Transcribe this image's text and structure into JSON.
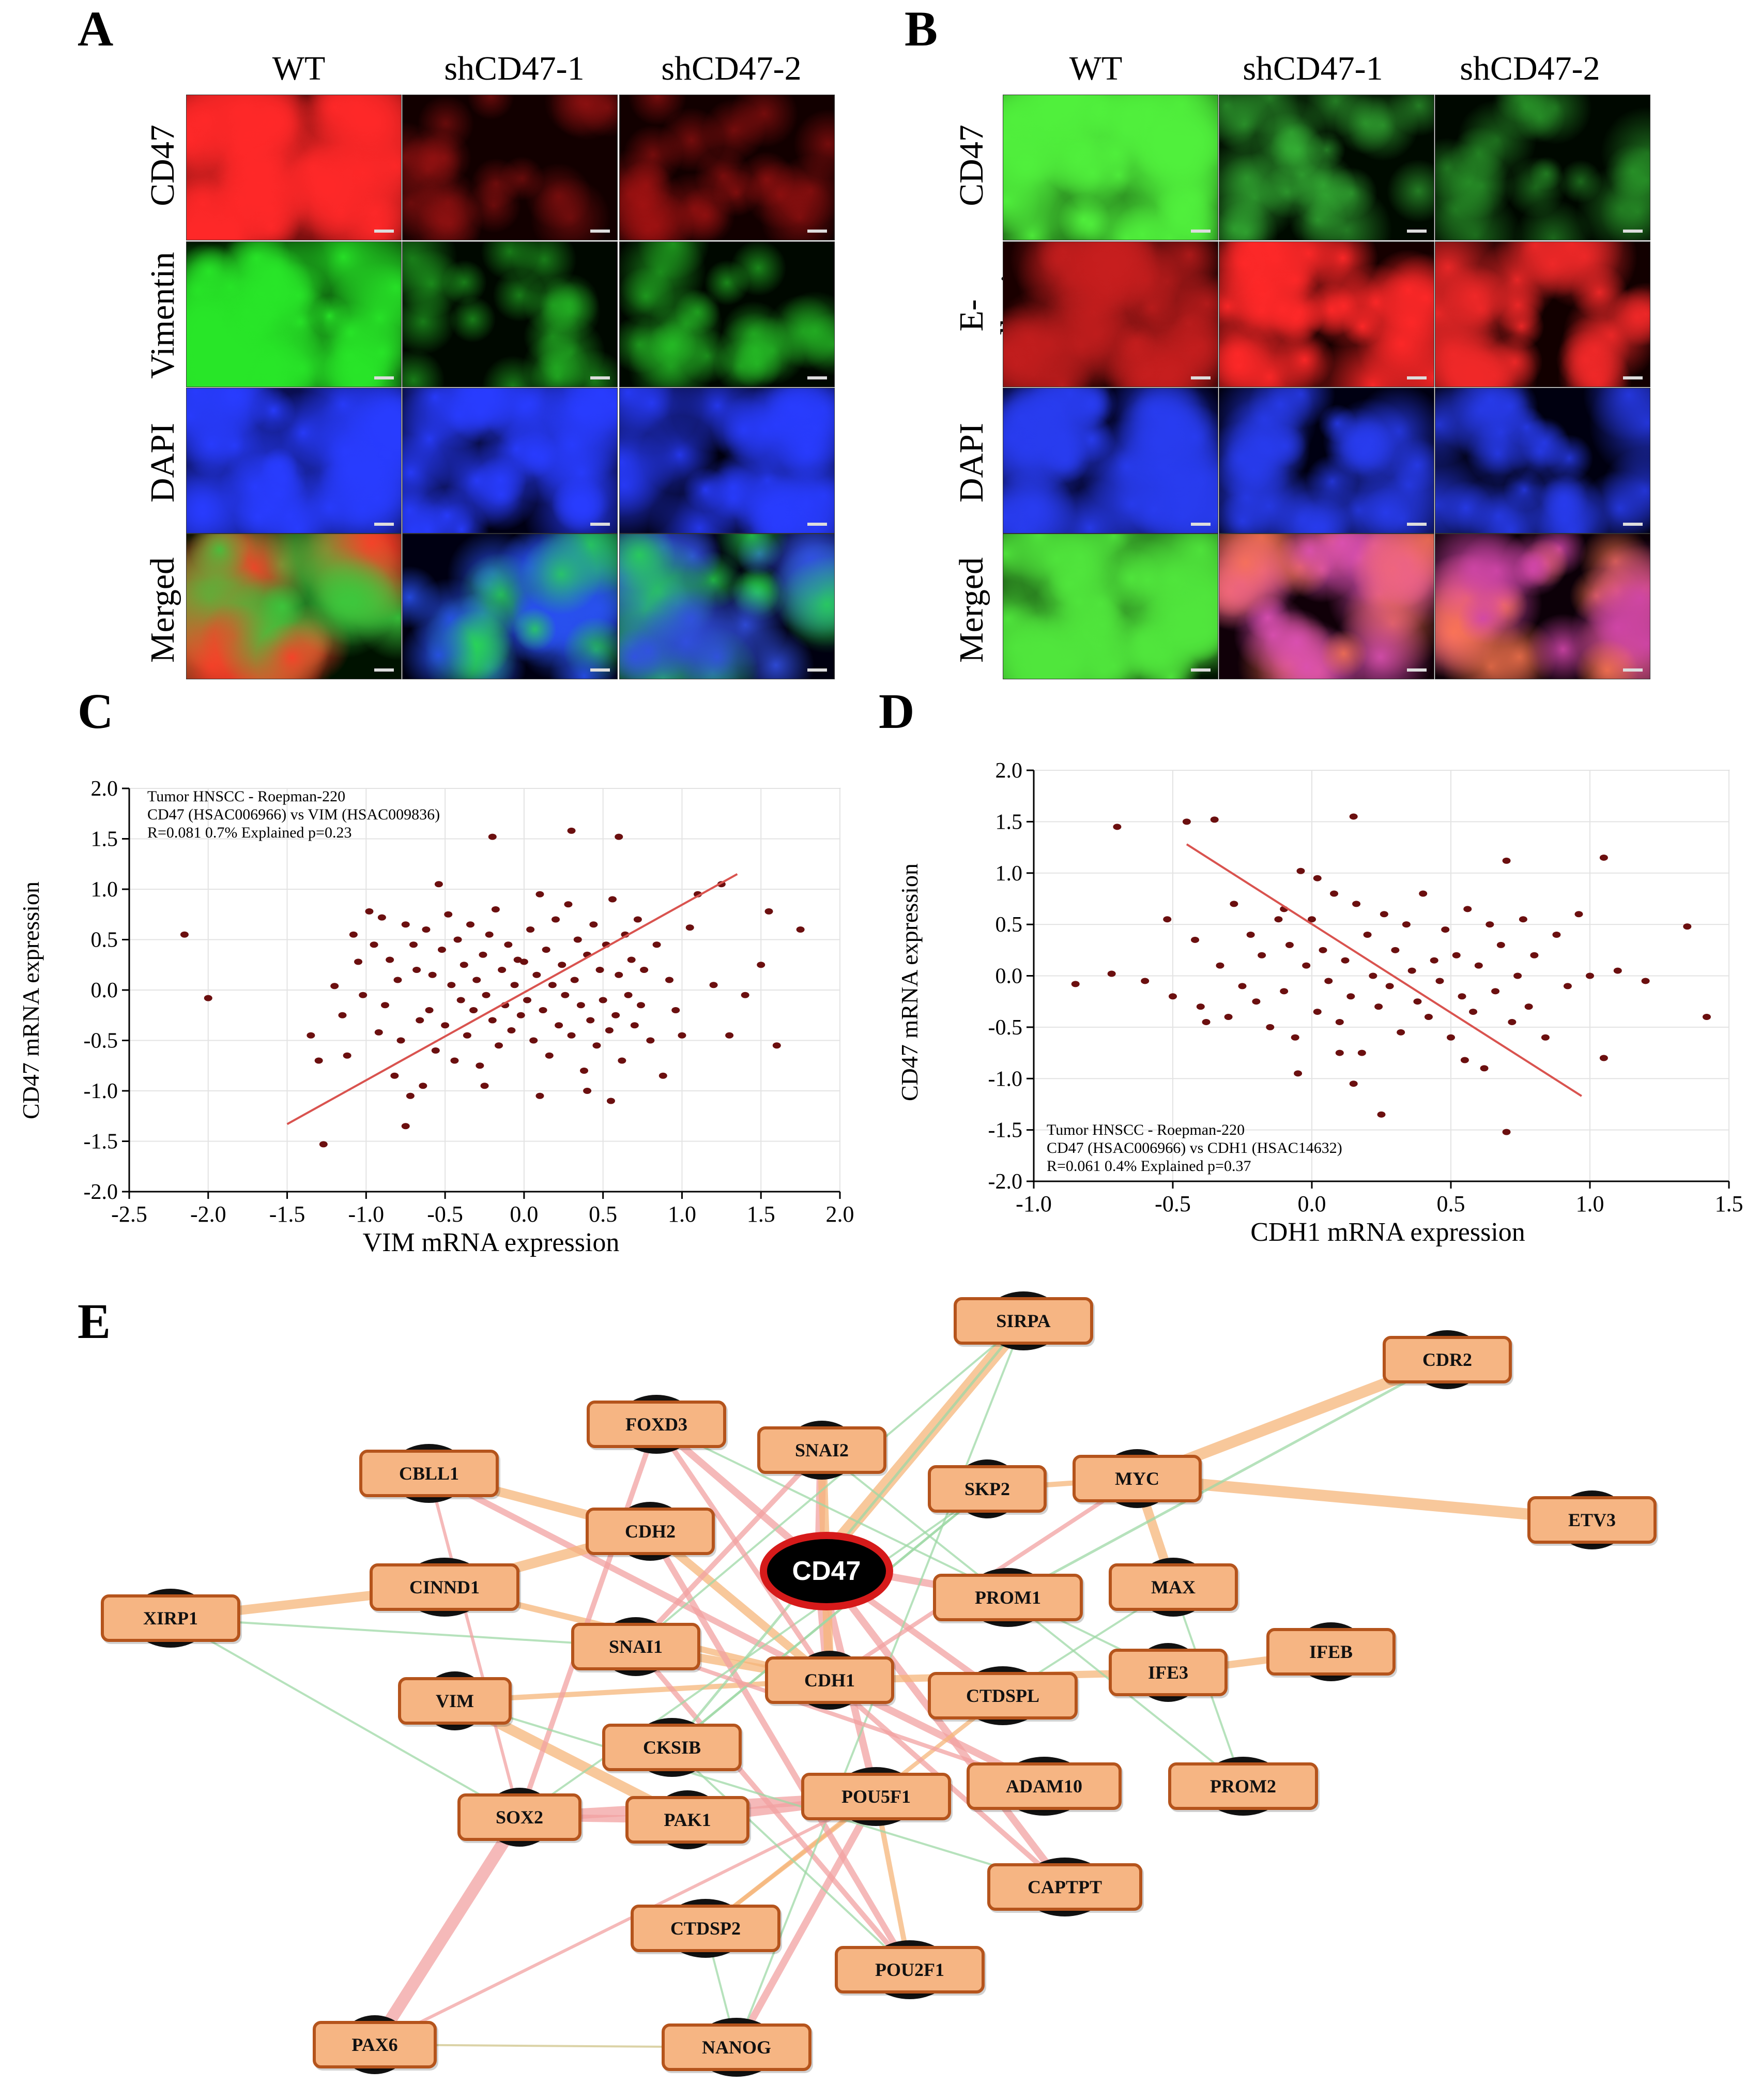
{
  "panels": {
    "A": {
      "letter": "A",
      "columns": [
        "WT",
        "shCD47-1",
        "shCD47-2"
      ],
      "rows": [
        "CD47",
        "Vimentin",
        "DAPI",
        "Merged"
      ]
    },
    "B": {
      "letter": "B",
      "columns": [
        "WT",
        "shCD47-1",
        "shCD47-2"
      ],
      "rows": [
        "CD47",
        "E-cadherin",
        "DAPI",
        "Merged"
      ]
    },
    "C": {
      "letter": "C"
    },
    "D": {
      "letter": "D"
    },
    "E": {
      "letter": "E"
    }
  },
  "chart_data": [
    {
      "id": "C",
      "type": "scatter",
      "xlabel": "VIM mRNA expression",
      "ylabel": "CD47 mRNA expression",
      "annotation": [
        "Tumor HNSCC - Roepman-220",
        "CD47 (HSAC006966) vs VIM (HSAC009836)",
        "R=0.081 0.7% Explained p=0.23"
      ],
      "xlim": [
        -2.5,
        2.0
      ],
      "ylim": [
        -2.0,
        2.0
      ],
      "xticks": [
        "-2.5",
        "-2.0",
        "-1.5",
        "-1.0",
        "-0.5",
        "0.0",
        "0.5",
        "1.0",
        "1.5",
        "2.0"
      ],
      "yticks": [
        "2.0",
        "1.5",
        "1.0",
        "0.5",
        "0.0",
        "-0.5",
        "-1.0",
        "-1.5",
        "-2.0"
      ],
      "point_color": "#6b0f0f",
      "fit_line_color": "#d9534f",
      "fit_line": [
        [
          -1.5,
          -1.33
        ],
        [
          1.35,
          1.15
        ]
      ],
      "points": [
        [
          -2.15,
          0.55
        ],
        [
          -2.0,
          -0.08
        ],
        [
          -1.27,
          -1.53
        ],
        [
          -1.2,
          0.04
        ],
        [
          -1.15,
          -0.25
        ],
        [
          -1.12,
          -0.65
        ],
        [
          -1.08,
          0.55
        ],
        [
          -1.05,
          0.28
        ],
        [
          -1.02,
          -0.05
        ],
        [
          -0.98,
          0.78
        ],
        [
          -0.95,
          0.45
        ],
        [
          -0.92,
          -0.42
        ],
        [
          -0.9,
          0.72
        ],
        [
          -0.88,
          -0.15
        ],
        [
          -0.85,
          0.3
        ],
        [
          -0.82,
          -0.85
        ],
        [
          -0.8,
          0.1
        ],
        [
          -0.78,
          -0.5
        ],
        [
          -0.75,
          0.65
        ],
        [
          -0.72,
          -1.05
        ],
        [
          -0.7,
          0.45
        ],
        [
          -0.68,
          0.2
        ],
        [
          -0.66,
          -0.3
        ],
        [
          -0.64,
          -0.95
        ],
        [
          -0.62,
          0.6
        ],
        [
          -0.6,
          -0.2
        ],
        [
          -0.58,
          0.15
        ],
        [
          -0.56,
          -0.6
        ],
        [
          -0.54,
          1.05
        ],
        [
          -0.52,
          0.4
        ],
        [
          -0.5,
          -0.35
        ],
        [
          -0.48,
          0.75
        ],
        [
          -0.46,
          0.05
        ],
        [
          -0.44,
          -0.7
        ],
        [
          -0.42,
          0.5
        ],
        [
          -0.4,
          -0.1
        ],
        [
          -0.38,
          0.25
        ],
        [
          -0.36,
          -0.45
        ],
        [
          -0.34,
          0.65
        ],
        [
          -0.32,
          -0.2
        ],
        [
          -0.3,
          0.1
        ],
        [
          -0.28,
          -0.75
        ],
        [
          -0.26,
          0.35
        ],
        [
          -0.24,
          -0.05
        ],
        [
          -0.22,
          0.55
        ],
        [
          -0.2,
          -0.3
        ],
        [
          -0.18,
          0.8
        ],
        [
          -0.16,
          -0.55
        ],
        [
          -0.14,
          0.2
        ],
        [
          -0.12,
          -0.15
        ],
        [
          -0.1,
          0.45
        ],
        [
          -0.08,
          -0.4
        ],
        [
          -0.06,
          0.05
        ],
        [
          -0.04,
          0.3
        ],
        [
          -0.02,
          -0.25
        ],
        [
          0.0,
          0.28
        ],
        [
          0.02,
          -0.1
        ],
        [
          0.04,
          0.6
        ],
        [
          0.06,
          -0.5
        ],
        [
          0.08,
          0.15
        ],
        [
          0.1,
          0.95
        ],
        [
          0.12,
          -0.2
        ],
        [
          0.14,
          0.4
        ],
        [
          0.16,
          -0.65
        ],
        [
          0.18,
          0.05
        ],
        [
          0.2,
          0.7
        ],
        [
          0.22,
          -0.35
        ],
        [
          0.24,
          0.25
        ],
        [
          0.26,
          -0.05
        ],
        [
          0.28,
          0.85
        ],
        [
          0.3,
          -0.45
        ],
        [
          0.32,
          0.1
        ],
        [
          0.34,
          0.5
        ],
        [
          0.36,
          -0.15
        ],
        [
          0.38,
          -0.8
        ],
        [
          0.4,
          0.35
        ],
        [
          0.42,
          -0.3
        ],
        [
          0.44,
          0.65
        ],
        [
          0.46,
          -0.55
        ],
        [
          0.48,
          0.2
        ],
        [
          0.5,
          -0.1
        ],
        [
          0.52,
          0.45
        ],
        [
          0.54,
          -0.4
        ],
        [
          0.56,
          0.9
        ],
        [
          0.58,
          -0.25
        ],
        [
          0.6,
          0.15
        ],
        [
          0.62,
          -0.7
        ],
        [
          0.64,
          0.55
        ],
        [
          0.66,
          -0.05
        ],
        [
          0.68,
          0.3
        ],
        [
          0.7,
          -0.35
        ],
        [
          0.72,
          0.7
        ],
        [
          0.74,
          -0.15
        ],
        [
          0.76,
          0.2
        ],
        [
          0.8,
          -0.5
        ],
        [
          0.84,
          0.45
        ],
        [
          0.88,
          -0.85
        ],
        [
          0.92,
          0.1
        ],
        [
          0.96,
          -0.2
        ],
        [
          1.0,
          -0.45
        ],
        [
          1.05,
          0.62
        ],
        [
          1.1,
          0.95
        ],
        [
          1.2,
          0.05
        ],
        [
          1.25,
          1.05
        ],
        [
          1.3,
          -0.45
        ],
        [
          1.4,
          -0.05
        ],
        [
          1.5,
          0.25
        ],
        [
          1.55,
          0.78
        ],
        [
          1.6,
          -0.55
        ],
        [
          1.75,
          0.6
        ],
        [
          -1.35,
          -0.45
        ],
        [
          -1.3,
          -0.7
        ],
        [
          -0.2,
          1.52
        ],
        [
          -0.25,
          -0.95
        ],
        [
          0.3,
          1.58
        ],
        [
          0.6,
          1.52
        ],
        [
          0.1,
          -1.05
        ],
        [
          0.4,
          -1.0
        ],
        [
          0.55,
          -1.1
        ],
        [
          -0.75,
          -1.35
        ]
      ]
    },
    {
      "id": "D",
      "type": "scatter",
      "xlabel": "CDH1 mRNA expression",
      "ylabel": "CD47 mRNA expression",
      "annotation": [
        "Tumor HNSCC - Roepman-220",
        "CD47 (HSAC006966) vs CDH1 (HSAC14632)",
        "R=0.061 0.4% Explained p=0.37"
      ],
      "xlim": [
        -1.0,
        1.5
      ],
      "ylim": [
        -2.0,
        2.0
      ],
      "xticks": [
        "-1.0",
        "-0.5",
        "0.0",
        "0.5",
        "1.0",
        "1.5"
      ],
      "yticks": [
        "2.0",
        "1.5",
        "1.0",
        "0.5",
        "0.0",
        "-0.5",
        "-1.0",
        "-1.5",
        "-2.0"
      ],
      "point_color": "#6b0f0f",
      "fit_line_color": "#d9534f",
      "fit_line": [
        [
          -0.45,
          1.28
        ],
        [
          0.97,
          -1.17
        ]
      ],
      "points": [
        [
          -0.85,
          -0.08
        ],
        [
          -0.7,
          1.45
        ],
        [
          -0.72,
          0.02
        ],
        [
          -0.6,
          -0.05
        ],
        [
          -0.52,
          0.55
        ],
        [
          -0.5,
          -0.2
        ],
        [
          -0.45,
          1.5
        ],
        [
          -0.42,
          0.35
        ],
        [
          -0.4,
          -0.3
        ],
        [
          -0.38,
          -0.45
        ],
        [
          -0.35,
          1.52
        ],
        [
          -0.33,
          0.1
        ],
        [
          -0.3,
          -0.4
        ],
        [
          -0.28,
          0.7
        ],
        [
          -0.25,
          -0.1
        ],
        [
          -0.22,
          0.4
        ],
        [
          -0.2,
          -0.25
        ],
        [
          -0.18,
          0.2
        ],
        [
          -0.15,
          -0.5
        ],
        [
          -0.12,
          0.55
        ],
        [
          -0.1,
          -0.15
        ],
        [
          -0.08,
          0.3
        ],
        [
          -0.06,
          -0.6
        ],
        [
          -0.04,
          1.02
        ],
        [
          -0.02,
          0.1
        ],
        [
          0.0,
          0.55
        ],
        [
          0.02,
          -0.35
        ],
        [
          0.04,
          0.25
        ],
        [
          0.06,
          -0.05
        ],
        [
          0.08,
          0.8
        ],
        [
          0.1,
          -0.45
        ],
        [
          0.12,
          0.15
        ],
        [
          0.14,
          -0.2
        ],
        [
          0.16,
          0.7
        ],
        [
          0.18,
          -0.75
        ],
        [
          0.2,
          0.4
        ],
        [
          0.22,
          0.0
        ],
        [
          0.24,
          -0.3
        ],
        [
          0.26,
          0.6
        ],
        [
          0.28,
          -0.1
        ],
        [
          0.3,
          0.25
        ],
        [
          0.32,
          -0.55
        ],
        [
          0.34,
          0.5
        ],
        [
          0.36,
          0.05
        ],
        [
          0.38,
          -0.25
        ],
        [
          0.4,
          0.8
        ],
        [
          0.42,
          -0.4
        ],
        [
          0.44,
          0.15
        ],
        [
          0.46,
          -0.05
        ],
        [
          0.48,
          0.45
        ],
        [
          0.5,
          -0.6
        ],
        [
          0.52,
          0.2
        ],
        [
          0.54,
          -0.2
        ],
        [
          0.56,
          0.65
        ],
        [
          0.58,
          -0.35
        ],
        [
          0.6,
          0.1
        ],
        [
          0.62,
          -0.9
        ],
        [
          0.64,
          0.5
        ],
        [
          0.66,
          -0.15
        ],
        [
          0.68,
          0.3
        ],
        [
          0.7,
          1.12
        ],
        [
          0.72,
          -0.45
        ],
        [
          0.74,
          0.0
        ],
        [
          0.76,
          0.55
        ],
        [
          0.78,
          -0.3
        ],
        [
          0.8,
          0.2
        ],
        [
          0.84,
          -0.6
        ],
        [
          0.88,
          0.4
        ],
        [
          0.92,
          -0.1
        ],
        [
          0.96,
          0.6
        ],
        [
          1.0,
          0.0
        ],
        [
          1.05,
          1.15
        ],
        [
          1.1,
          0.05
        ],
        [
          1.2,
          -0.05
        ],
        [
          1.35,
          0.48
        ],
        [
          1.42,
          -0.4
        ],
        [
          0.15,
          1.55
        ],
        [
          0.25,
          -1.35
        ],
        [
          0.7,
          -1.52
        ],
        [
          -0.05,
          -0.95
        ],
        [
          0.15,
          -1.05
        ],
        [
          0.55,
          -0.82
        ],
        [
          1.05,
          -0.8
        ],
        [
          -0.1,
          0.65
        ],
        [
          0.02,
          0.95
        ],
        [
          0.1,
          -0.75
        ]
      ]
    }
  ],
  "network": {
    "center": "CD47",
    "nodes": [
      "SIRPA",
      "CDR2",
      "FOXD3",
      "SNAI2",
      "CBLL1",
      "SKP2",
      "MYC",
      "ETV3",
      "CDH2",
      "CINND1",
      "PROM1",
      "MAX",
      "XIRP1",
      "SNAI1",
      "IFE3",
      "IFEB",
      "CDH1",
      "CTDSPL",
      "VIM",
      "CKSIB",
      "POU5F1",
      "ADAM10",
      "PROM2",
      "SOX2",
      "PAK1",
      "CAPTPT",
      "CTDSP2",
      "POU2F1",
      "PAX6",
      "NANOG"
    ]
  }
}
